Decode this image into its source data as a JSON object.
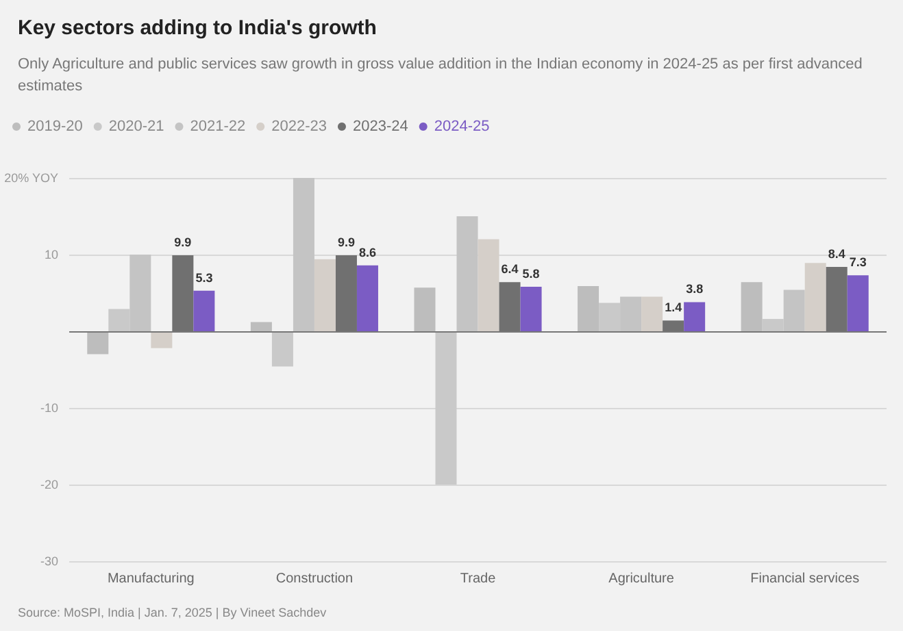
{
  "chart_data": {
    "type": "bar",
    "title": "Key sectors adding to India's growth",
    "subtitle": "Only Agriculture and public services saw growth in gross value addition in the Indian economy in 2024-25 as per first advanced estimates",
    "categories": [
      "Manufacturing",
      "Construction",
      "Trade",
      "Agriculture",
      "Financial services"
    ],
    "series": [
      {
        "name": "2019-20",
        "color": "#bdbdbd",
        "values": [
          -3.0,
          1.2,
          5.7,
          5.9,
          6.4
        ]
      },
      {
        "name": "2020-21",
        "color": "#c9c9c9",
        "values": [
          2.9,
          -4.6,
          -20.0,
          3.7,
          1.6
        ]
      },
      {
        "name": "2021-22",
        "color": "#c4c4c4",
        "values": [
          10.0,
          20.0,
          15.0,
          4.5,
          5.4
        ]
      },
      {
        "name": "2022-23",
        "color": "#d5cfc9",
        "values": [
          -2.2,
          9.4,
          12.0,
          4.5,
          8.9
        ]
      },
      {
        "name": "2023-24",
        "color": "#707070",
        "values": [
          9.9,
          9.9,
          6.4,
          1.4,
          8.4
        ],
        "value_labels": [
          "9.9",
          "9.9",
          "6.4",
          "1.4",
          "8.4"
        ]
      },
      {
        "name": "2024-25",
        "color": "#7b5cc4",
        "values": [
          5.3,
          8.6,
          5.8,
          3.8,
          7.3
        ],
        "value_labels": [
          "5.3",
          "8.6",
          "5.8",
          "3.8",
          "7.3"
        ]
      }
    ],
    "ylim": [
      -30,
      20
    ],
    "yticks": [
      {
        "value": 20,
        "label": "20% YOY"
      },
      10,
      {
        "value": 0,
        "label": null
      },
      -10,
      -20,
      -30
    ],
    "grid": "y",
    "legend": "top left",
    "annotations": [
      "Source: MoSPI, India | Jan. 7, 2025 | By Vineet Sachdev"
    ]
  }
}
